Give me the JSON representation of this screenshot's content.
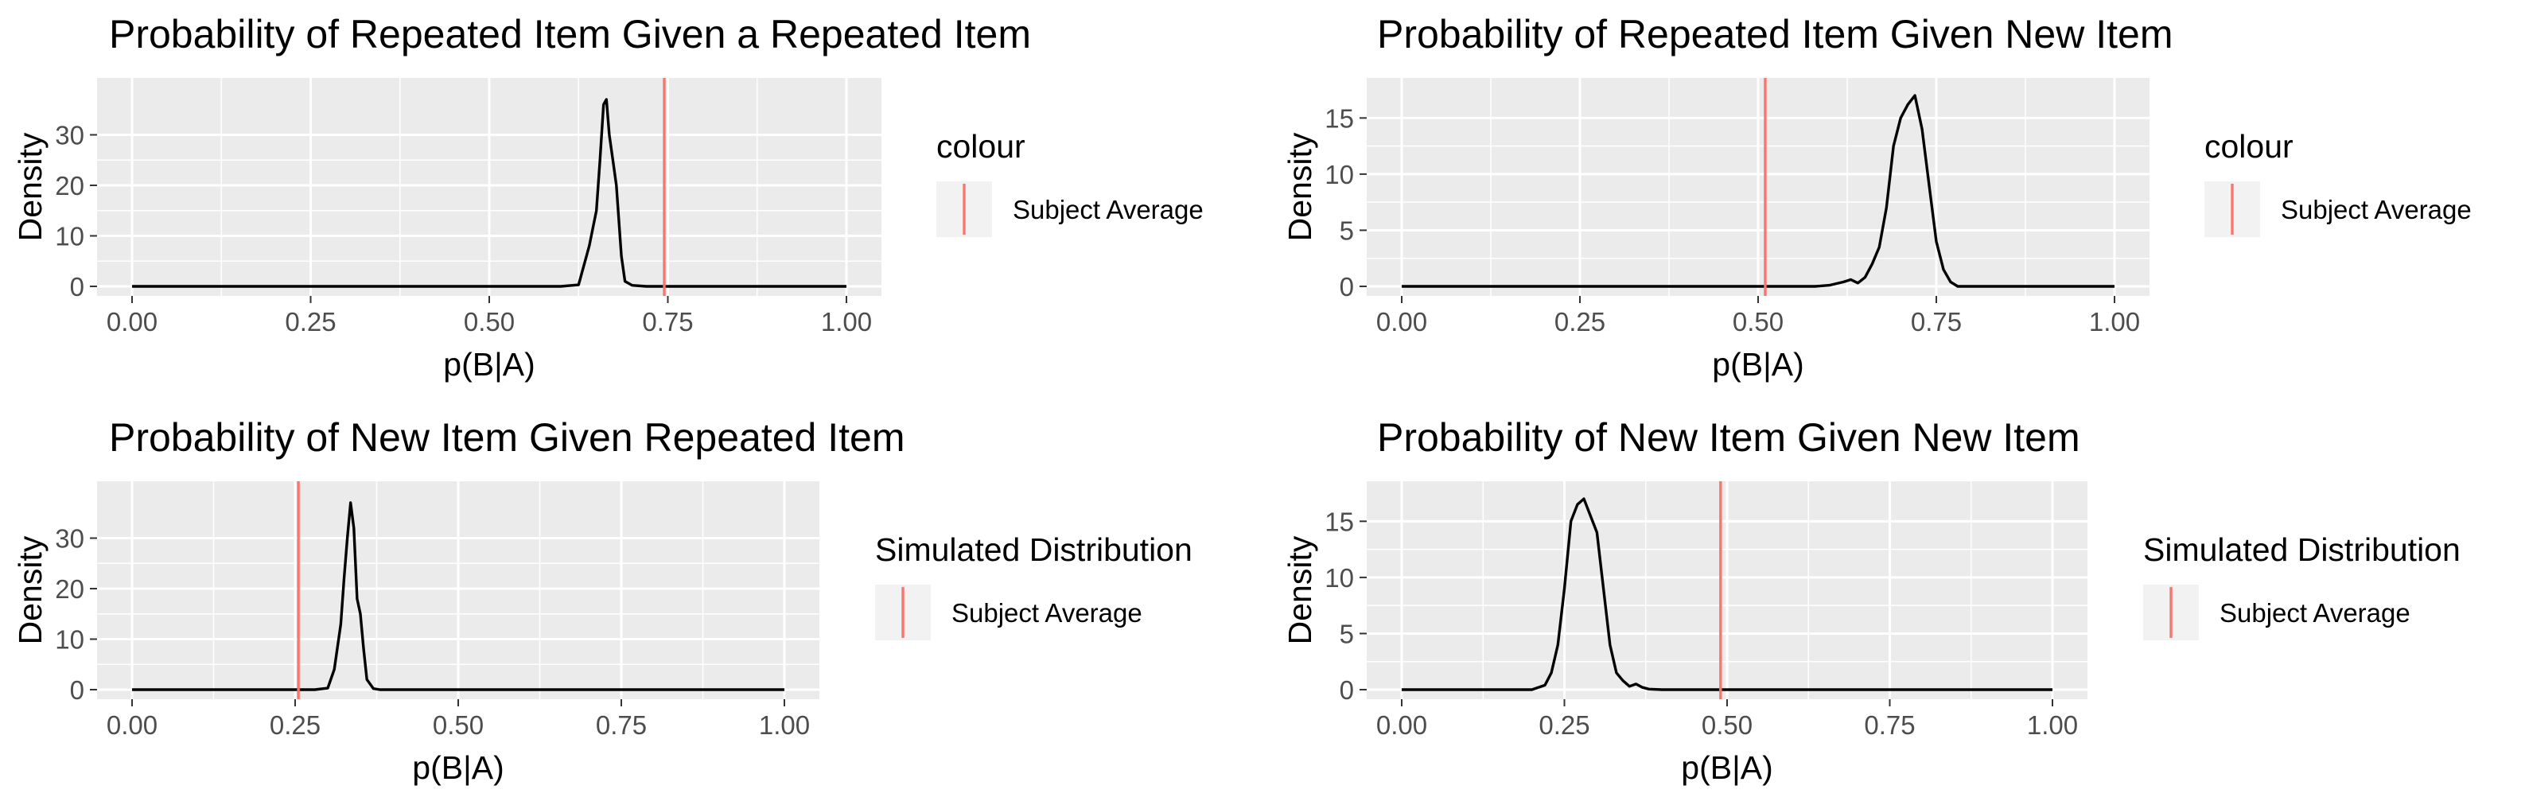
{
  "chart_data": [
    {
      "type": "density",
      "title": "Probability of Repeated Item Given a Repeated Item",
      "xlabel": "p(B|A)",
      "ylabel": "Density",
      "xlim": [
        0,
        1
      ],
      "ylim": [
        0,
        40
      ],
      "x_ticks": [
        "0.00",
        "0.25",
        "0.50",
        "0.75",
        "1.00"
      ],
      "y_ticks": [
        "0",
        "10",
        "20",
        "30"
      ],
      "y_tick_values": [
        0,
        10,
        20,
        30
      ],
      "grid": true,
      "legend": {
        "title": "colour",
        "label": "Subject Average",
        "position": "right"
      },
      "subject_average": 0.745,
      "colors": {
        "curve": "#000000",
        "subject_average": "#f8766d",
        "panel": "#ebebeb",
        "grid": "#ffffff"
      },
      "series": [
        {
          "x": [
            0,
            0.6,
            0.625,
            0.64,
            0.65,
            0.655,
            0.66,
            0.664,
            0.668,
            0.672,
            0.678,
            0.685,
            0.69,
            0.7,
            0.72,
            1.0
          ],
          "y": [
            0,
            0,
            0.3,
            8,
            15,
            25,
            36,
            37,
            30,
            26,
            20,
            6,
            1,
            0.2,
            0,
            0
          ]
        }
      ]
    },
    {
      "type": "density",
      "title": "Probability of Repeated Item Given New Item",
      "xlabel": "p(B|A)",
      "ylabel": "Density",
      "xlim": [
        0,
        1
      ],
      "ylim": [
        0,
        18
      ],
      "x_ticks": [
        "0.00",
        "0.25",
        "0.50",
        "0.75",
        "1.00"
      ],
      "y_ticks": [
        "0",
        "5",
        "10",
        "15"
      ],
      "y_tick_values": [
        0,
        5,
        10,
        15
      ],
      "grid": true,
      "legend": {
        "title": "colour",
        "label": "Subject Average",
        "position": "right"
      },
      "subject_average": 0.51,
      "colors": {
        "curve": "#000000",
        "subject_average": "#f8766d",
        "panel": "#ebebeb",
        "grid": "#ffffff"
      },
      "series": [
        {
          "x": [
            0,
            0.58,
            0.6,
            0.62,
            0.63,
            0.64,
            0.65,
            0.66,
            0.67,
            0.68,
            0.69,
            0.7,
            0.71,
            0.72,
            0.73,
            0.74,
            0.75,
            0.76,
            0.77,
            0.78,
            1.0
          ],
          "y": [
            0,
            0,
            0.1,
            0.4,
            0.6,
            0.3,
            0.8,
            2,
            3.5,
            7,
            12.5,
            15,
            16.2,
            17,
            14,
            9,
            4,
            1.5,
            0.4,
            0,
            0
          ]
        }
      ]
    },
    {
      "type": "density",
      "title": "Probability of New Item Given Repeated Item",
      "xlabel": "p(B|A)",
      "ylabel": "Density",
      "xlim": [
        0,
        1
      ],
      "ylim": [
        0,
        40
      ],
      "x_ticks": [
        "0.00",
        "0.25",
        "0.50",
        "0.75",
        "1.00"
      ],
      "y_ticks": [
        "0",
        "10",
        "20",
        "30"
      ],
      "y_tick_values": [
        0,
        10,
        20,
        30
      ],
      "grid": true,
      "legend": {
        "title": "Simulated Distribution",
        "label": "Subject Average",
        "position": "right"
      },
      "subject_average": 0.255,
      "colors": {
        "curve": "#000000",
        "subject_average": "#f8766d",
        "panel": "#ebebeb",
        "grid": "#ffffff"
      },
      "series": [
        {
          "x": [
            0,
            0.28,
            0.3,
            0.31,
            0.32,
            0.325,
            0.33,
            0.335,
            0.34,
            0.345,
            0.35,
            0.355,
            0.36,
            0.37,
            0.38,
            1.0
          ],
          "y": [
            0,
            0,
            0.3,
            4,
            13,
            22,
            30,
            37,
            32,
            18,
            15,
            8,
            2,
            0.2,
            0,
            0
          ]
        }
      ]
    },
    {
      "type": "density",
      "title": "Probability of New Item Given New Item",
      "xlabel": "p(B|A)",
      "ylabel": "Density",
      "xlim": [
        0,
        1
      ],
      "ylim": [
        0,
        18
      ],
      "x_ticks": [
        "0.00",
        "0.25",
        "0.50",
        "0.75",
        "1.00"
      ],
      "y_ticks": [
        "0",
        "5",
        "10",
        "15"
      ],
      "y_tick_values": [
        0,
        5,
        10,
        15
      ],
      "grid": true,
      "legend": {
        "title": "Simulated Distribution",
        "label": "Subject Average",
        "position": "right"
      },
      "subject_average": 0.49,
      "colors": {
        "curve": "#000000",
        "subject_average": "#f8766d",
        "panel": "#ebebeb",
        "grid": "#ffffff"
      },
      "series": [
        {
          "x": [
            0,
            0.2,
            0.22,
            0.23,
            0.24,
            0.25,
            0.26,
            0.27,
            0.28,
            0.29,
            0.3,
            0.31,
            0.32,
            0.33,
            0.34,
            0.35,
            0.36,
            0.37,
            0.38,
            0.4,
            1.0
          ],
          "y": [
            0,
            0,
            0.4,
            1.5,
            4,
            9,
            15,
            16.5,
            17,
            15.5,
            14,
            9,
            4,
            1.5,
            0.8,
            0.3,
            0.5,
            0.2,
            0.05,
            0,
            0
          ]
        }
      ]
    }
  ]
}
